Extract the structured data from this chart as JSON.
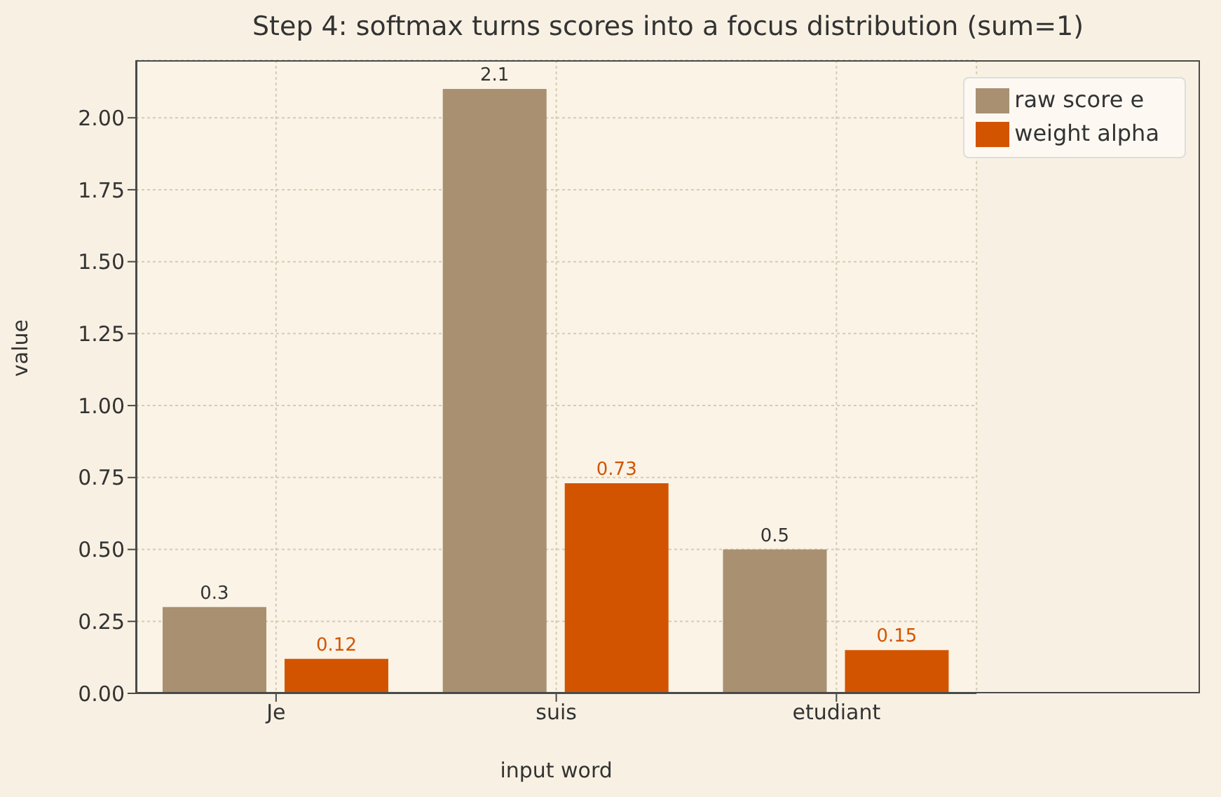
{
  "chart_data": {
    "type": "bar",
    "title": "Step 4: softmax turns scores into a focus distribution (sum=1)",
    "xlabel": "input word",
    "ylabel": "value",
    "categories": [
      "Je",
      "suis",
      "etudiant"
    ],
    "series": [
      {
        "name": "raw score e",
        "color": "#a89070",
        "values": [
          0.3,
          2.1,
          0.5
        ]
      },
      {
        "name": "weight alpha",
        "color": "#d35400",
        "values": [
          0.12,
          0.73,
          0.15
        ]
      }
    ],
    "ylim": [
      0,
      2.2
    ],
    "yticks": [
      {
        "value": 0,
        "label": "0.00"
      },
      {
        "value": 0.25,
        "label": "0.25"
      },
      {
        "value": 0.5,
        "label": "0.50"
      },
      {
        "value": 0.75,
        "label": "0.75"
      },
      {
        "value": 1,
        "label": "1.00"
      },
      {
        "value": 1.25,
        "label": "1.25"
      },
      {
        "value": 1.5,
        "label": "1.50"
      },
      {
        "value": 1.75,
        "label": "1.75"
      },
      {
        "value": 2,
        "label": "2.00"
      }
    ],
    "grid": true,
    "legend": "top right",
    "data_labels": true
  }
}
